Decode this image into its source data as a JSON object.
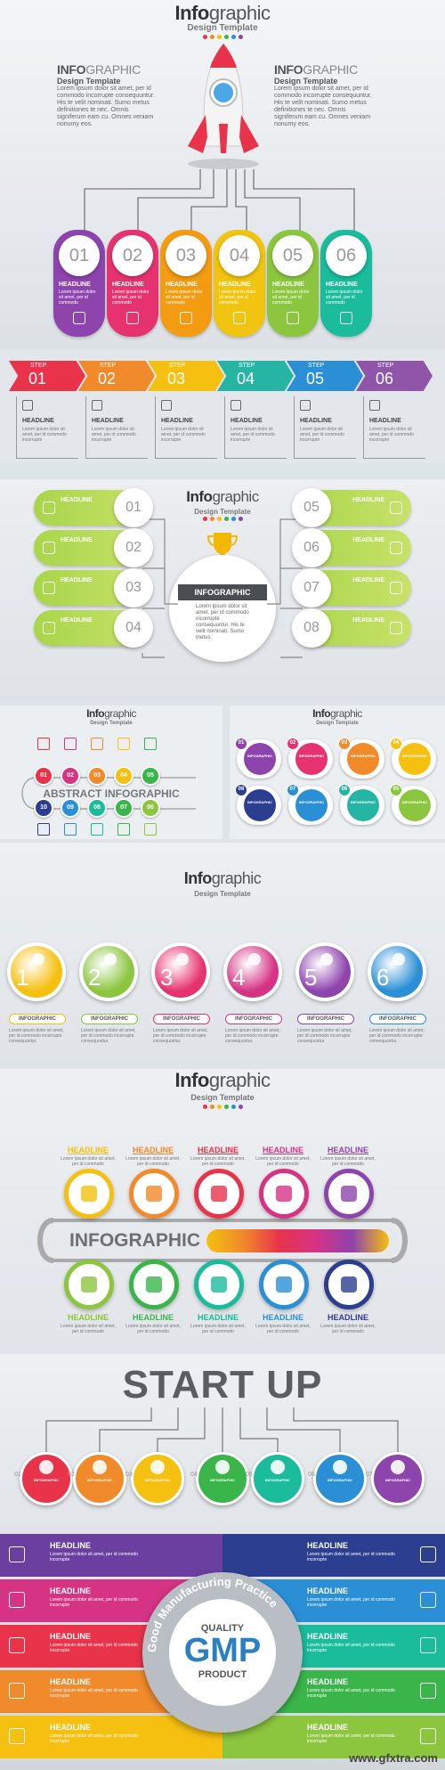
{
  "s1": {
    "title_bold": "Info",
    "title_rest": "graphic",
    "subtitle": "Design Template",
    "left_title_bold": "INFO",
    "left_title_rest": "GRAPHIC",
    "left_sub": "Design Template",
    "left_body": "Lorem ipsum dolor sit amet, per id commodo incorrupte consequuntur. His te velit nominati. Sumo metus definitiones te nec. Omnis signiferum eam cu. Omnes veniam nonumy eos.",
    "right_title_bold": "INFO",
    "right_title_rest": "GRAPHIC",
    "right_sub": "Design Template",
    "right_body": "Lorem ipsum dolor sit amet, per id commodo incorrupte consequuntur. His te velit nominati. Sumo metus definitiones te nec. Omnis signiferum eam cu. Omnes veniam nonumy eos.",
    "pills": [
      {
        "num": "01",
        "head": "HEADLINE",
        "color": "#8e44ad"
      },
      {
        "num": "02",
        "head": "HEADLINE",
        "color": "#e6336f"
      },
      {
        "num": "03",
        "head": "HEADLINE",
        "color": "#f39c12"
      },
      {
        "num": "04",
        "head": "HEADLINE",
        "color": "#f1c40f"
      },
      {
        "num": "05",
        "head": "HEADLINE",
        "color": "#8cc63f"
      },
      {
        "num": "06",
        "head": "HEADLINE",
        "color": "#1abc9c"
      }
    ],
    "pill_body": "Lorem ipsum dolor sit amet, per id commodo"
  },
  "s2": {
    "steps": [
      {
        "label": "STEP",
        "num": "01",
        "color": "#e8334a"
      },
      {
        "label": "STEP",
        "num": "02",
        "color": "#f08a2a"
      },
      {
        "label": "STEP",
        "num": "03",
        "color": "#f5c010"
      },
      {
        "label": "STEP",
        "num": "04",
        "color": "#26b5a5"
      },
      {
        "label": "STEP",
        "num": "05",
        "color": "#2b8fd6"
      },
      {
        "label": "STEP",
        "num": "06",
        "color": "#8e55a8"
      }
    ],
    "head": "HEADLINE",
    "body": "Lorem ipsum dolor sit amet, per id commodo incorrupte"
  },
  "s3": {
    "title_bold": "Info",
    "title_rest": "graphic",
    "subtitle": "Design Template",
    "center_label": "INFOGRAPHIC",
    "center_body": "Lorem ipsum dolor sit amet, per id commodo incorrupte consequuntur. His te velit nominati. Sumo metus.",
    "left": [
      {
        "num": "01",
        "head": "HEADLINE"
      },
      {
        "num": "02",
        "head": "HEADLINE"
      },
      {
        "num": "03",
        "head": "HEADLINE"
      },
      {
        "num": "04",
        "head": "HEADLINE"
      }
    ],
    "right": [
      {
        "num": "05",
        "head": "HEADLINE"
      },
      {
        "num": "06",
        "head": "HEADLINE"
      },
      {
        "num": "07",
        "head": "HEADLINE"
      },
      {
        "num": "08",
        "head": "HEADLINE"
      }
    ]
  },
  "s4a": {
    "title_bold": "Info",
    "title_rest": "graphic",
    "subtitle": "Design Template",
    "label": "ABSTRACT INFOGRAPHIC",
    "top": [
      "01",
      "02",
      "03",
      "04",
      "05"
    ],
    "bottom": [
      "10",
      "09",
      "08",
      "07",
      "06"
    ]
  },
  "s4b": {
    "title_bold": "Info",
    "title_rest": "graphic",
    "subtitle": "Design Template",
    "items": [
      {
        "num": "01",
        "head": "INFOGRAPHIC",
        "color": "#8e44ad"
      },
      {
        "num": "02",
        "head": "INFOGRAPHIC",
        "color": "#e6336f"
      },
      {
        "num": "03",
        "head": "INFOGRAPHIC",
        "color": "#f08a2a"
      },
      {
        "num": "04",
        "head": "INFOGRAPHIC",
        "color": "#f5c010"
      },
      {
        "num": "08",
        "head": "INFOGRAPHIC",
        "color": "#2c3e90"
      },
      {
        "num": "07",
        "head": "INFOGRAPHIC",
        "color": "#2b8fd6"
      },
      {
        "num": "06",
        "head": "INFOGRAPHIC",
        "color": "#26b5a5"
      },
      {
        "num": "05",
        "head": "INFOGRAPHIC",
        "color": "#8cc63f"
      }
    ]
  },
  "s5": {
    "title_bold": "Info",
    "title_rest": "graphic",
    "subtitle": "Design Template",
    "items": [
      {
        "num": "1",
        "head": "INFOGRAPHIC",
        "color": "#f5c010"
      },
      {
        "num": "2",
        "head": "INFOGRAPHIC",
        "color": "#8cc63f"
      },
      {
        "num": "3",
        "head": "INFOGRAPHIC",
        "color": "#e6336f"
      },
      {
        "num": "4",
        "head": "INFOGRAPHIC",
        "color": "#d63384"
      },
      {
        "num": "5",
        "head": "INFOGRAPHIC",
        "color": "#8e44ad"
      },
      {
        "num": "6",
        "head": "INFOGRAPHIC",
        "color": "#2b8fd6"
      }
    ],
    "body": "Lorem ipsum dolor sit amet, per id commodo incorrupte consequuntur."
  },
  "s6": {
    "title_bold": "Info",
    "title_rest": "graphic",
    "subtitle": "Design Template",
    "label": "INFOGRAPHIC",
    "top": [
      {
        "head": "HEADLINE",
        "color": "#f5c010"
      },
      {
        "head": "HEADLINE",
        "color": "#f08a2a"
      },
      {
        "head": "HEADLINE",
        "color": "#e8334a"
      },
      {
        "head": "HEADLINE",
        "color": "#d63384"
      },
      {
        "head": "HEADLINE",
        "color": "#8e44ad"
      }
    ],
    "bottom": [
      {
        "head": "HEADLINE",
        "color": "#8cc63f"
      },
      {
        "head": "HEADLINE",
        "color": "#3ab54a"
      },
      {
        "head": "HEADLINE",
        "color": "#1abc9c"
      },
      {
        "head": "HEADLINE",
        "color": "#2b8fd6"
      },
      {
        "head": "HEADLINE",
        "color": "#2c3e90"
      }
    ],
    "body": "Lorem ipsum dolor sit amet, per id commodo"
  },
  "s7": {
    "title": "START UP",
    "items": [
      {
        "num": "01",
        "head": "INFOGRAPHIC",
        "color": "#e8334a"
      },
      {
        "num": "02",
        "head": "INFOGRAPHIC",
        "color": "#f08a2a"
      },
      {
        "num": "03",
        "head": "INFOGRAPHIC",
        "color": "#f5c010"
      },
      {
        "num": "04",
        "head": "INFOGRAPHIC",
        "color": "#3ab54a"
      },
      {
        "num": "05",
        "head": "INFOGRAPHIC",
        "color": "#1abc9c"
      },
      {
        "num": "06",
        "head": "INFOGRAPHIC",
        "color": "#2b8fd6"
      },
      {
        "num": "07",
        "head": "INFOGRAPHIC",
        "color": "#8e44ad"
      }
    ]
  },
  "s8": {
    "quality": "QUALITY",
    "gmp": "GMP",
    "product": "PRODUCT",
    "ring": "Good Manufacturing Practice",
    "left": [
      {
        "head": "HEADLINE",
        "color": "#6a3fa0"
      },
      {
        "head": "HEADLINE",
        "color": "#d63384"
      },
      {
        "head": "HEADLINE",
        "color": "#e8334a"
      },
      {
        "head": "HEADLINE",
        "color": "#f08a2a"
      },
      {
        "head": "HEADLINE",
        "color": "#f5c010"
      }
    ],
    "right": [
      {
        "head": "HEADLINE",
        "color": "#2c3e90"
      },
      {
        "head": "HEADLINE",
        "color": "#2b8fd6"
      },
      {
        "head": "HEADLINE",
        "color": "#1abc9c"
      },
      {
        "head": "HEADLINE",
        "color": "#3ab54a"
      },
      {
        "head": "HEADLINE",
        "color": "#8cc63f"
      }
    ],
    "body": "Lorem ipsum dolor sit amet, per id commodo incorrupte"
  },
  "watermark": "www.gfxtra.com"
}
